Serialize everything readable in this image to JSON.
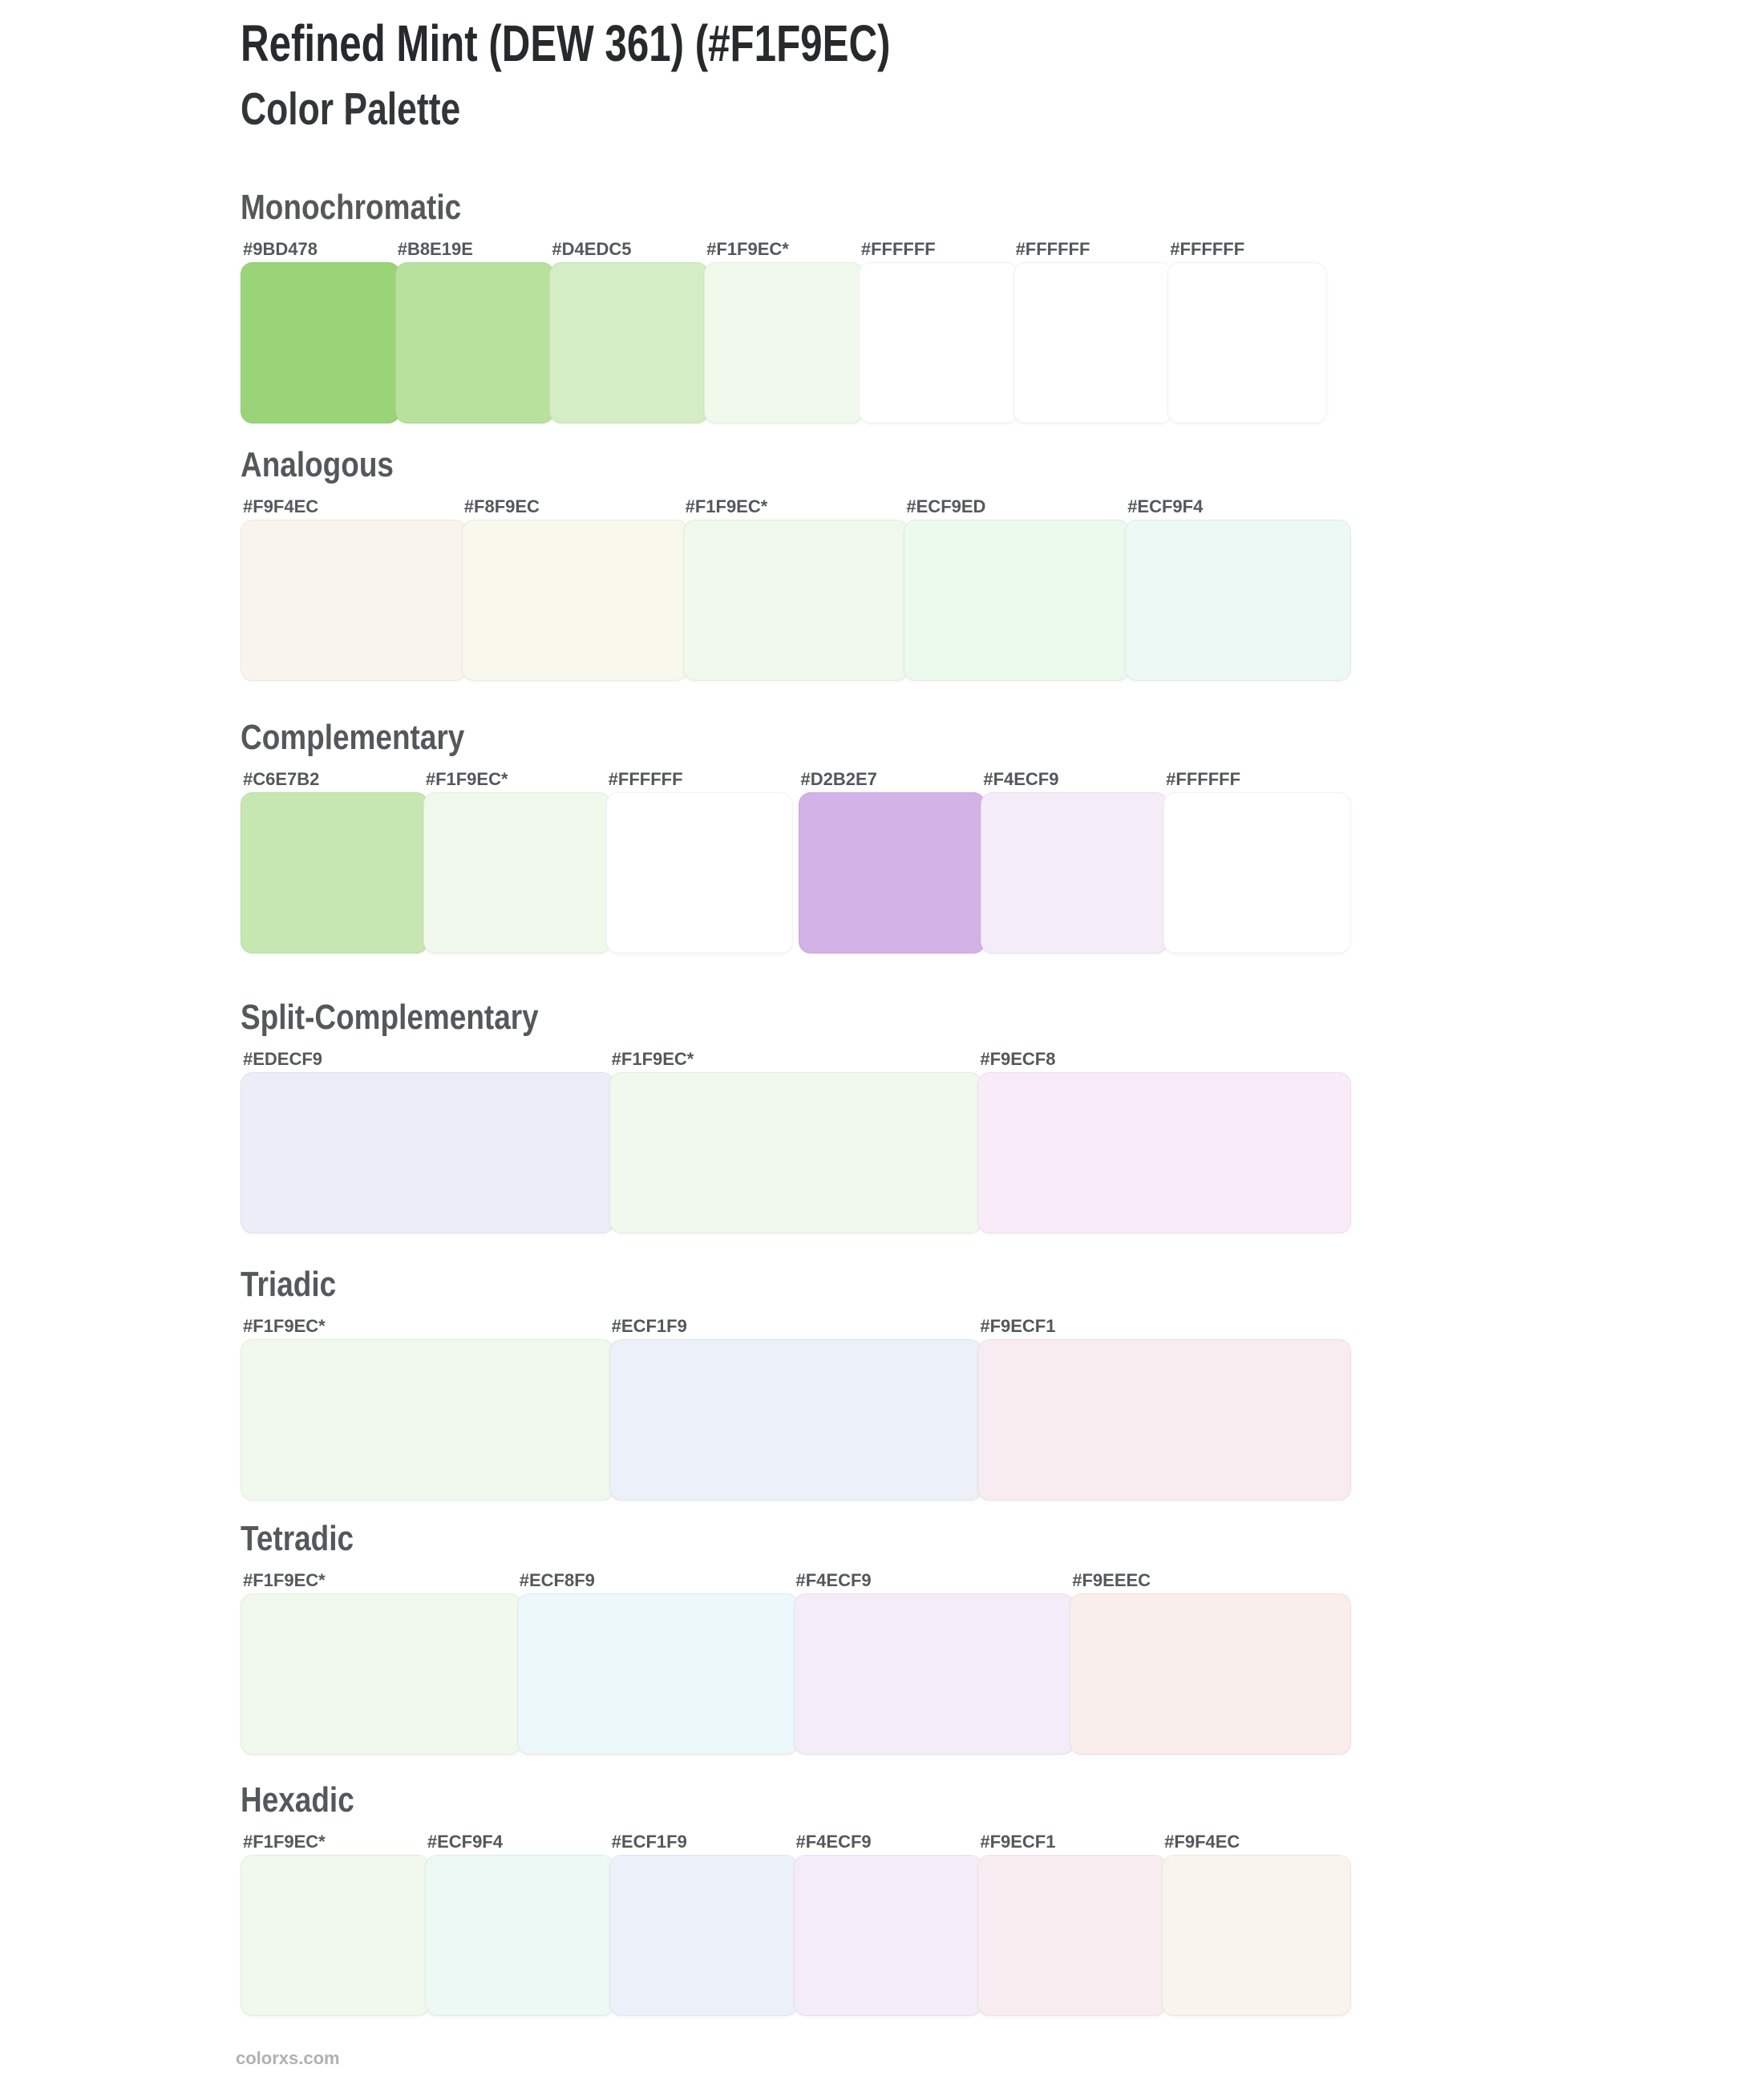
{
  "header": {
    "title": "Refined Mint (DEW 361) (#F1F9EC)",
    "subtitle": "Color Palette",
    "base_color_name": "Refined Mint",
    "base_color_code": "DEW 361",
    "base_color_hex": "#F1F9EC"
  },
  "sections": [
    {
      "name": "Monochromatic",
      "swatches": [
        {
          "label": "#9BD478",
          "color": "#9BD478"
        },
        {
          "label": "#B8E19E",
          "color": "#B8E19E"
        },
        {
          "label": "#D4EDC5",
          "color": "#D4EDC5"
        },
        {
          "label": "#F1F9EC*",
          "color": "#F1F9EC",
          "is_base": true
        },
        {
          "label": "#FFFFFF",
          "color": "#FFFFFF"
        },
        {
          "label": "#FFFFFF",
          "color": "#FFFFFF"
        },
        {
          "label": "#FFFFFF",
          "color": "#FFFFFF"
        }
      ]
    },
    {
      "name": "Analogous",
      "swatches": [
        {
          "label": "#F9F4EC",
          "color": "#F9F4EC"
        },
        {
          "label": "#F8F9EC",
          "color": "#F8F9EC"
        },
        {
          "label": "#F1F9EC*",
          "color": "#F1F9EC",
          "is_base": true
        },
        {
          "label": "#ECF9ED",
          "color": "#ECF9ED"
        },
        {
          "label": "#ECF9F4",
          "color": "#ECF9F4"
        }
      ]
    },
    {
      "name": "Complementary",
      "group_break_after": 3,
      "swatches": [
        {
          "label": "#C6E7B2",
          "color": "#C6E7B2"
        },
        {
          "label": "#F1F9EC*",
          "color": "#F1F9EC",
          "is_base": true
        },
        {
          "label": "#FFFFFF",
          "color": "#FFFFFF"
        },
        {
          "label": "#D2B2E7",
          "color": "#D2B2E7"
        },
        {
          "label": "#F4ECF9",
          "color": "#F4ECF9"
        },
        {
          "label": "#FFFFFF",
          "color": "#FFFFFF"
        }
      ]
    },
    {
      "name": "Split-Complementary",
      "swatches": [
        {
          "label": "#EDECF9",
          "color": "#EDECF9"
        },
        {
          "label": "#F1F9EC*",
          "color": "#F1F9EC",
          "is_base": true
        },
        {
          "label": "#F9ECF8",
          "color": "#F9ECF8"
        }
      ]
    },
    {
      "name": "Triadic",
      "swatches": [
        {
          "label": "#F1F9EC*",
          "color": "#F1F9EC",
          "is_base": true
        },
        {
          "label": "#ECF1F9",
          "color": "#ECF1F9"
        },
        {
          "label": "#F9ECF1",
          "color": "#F9ECF1"
        }
      ]
    },
    {
      "name": "Tetradic",
      "swatches": [
        {
          "label": "#F1F9EC*",
          "color": "#F1F9EC",
          "is_base": true
        },
        {
          "label": "#ECF8F9",
          "color": "#ECF8F9"
        },
        {
          "label": "#F4ECF9",
          "color": "#F4ECF9"
        },
        {
          "label": "#F9EEEC",
          "color": "#F9EEEC"
        }
      ]
    },
    {
      "name": "Hexadic",
      "swatches": [
        {
          "label": "#F1F9EC*",
          "color": "#F1F9EC",
          "is_base": true
        },
        {
          "label": "#ECF9F4",
          "color": "#ECF9F4"
        },
        {
          "label": "#ECF1F9",
          "color": "#ECF1F9"
        },
        {
          "label": "#F4ECF9",
          "color": "#F4ECF9"
        },
        {
          "label": "#F9ECF1",
          "color": "#F9ECF1"
        },
        {
          "label": "#F9F4EC",
          "color": "#F9F4EC"
        }
      ]
    }
  ],
  "footer": {
    "site": "colorxs.com"
  },
  "colors": {
    "page_bg": "#FFFFFF",
    "title_text": "#28292B",
    "heading_text": "#55585A",
    "label_text": "#55585A",
    "footer_text": "#B1B1B1",
    "swatch_border": "rgba(0,0,0,0.055)"
  }
}
